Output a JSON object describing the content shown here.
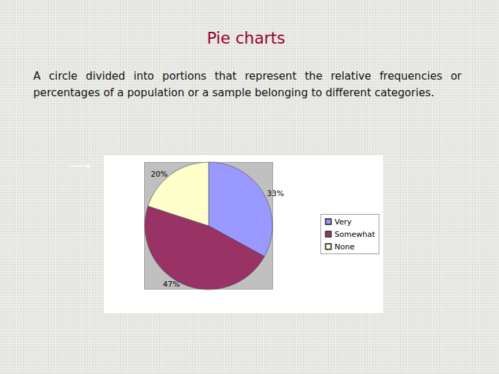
{
  "slide": {
    "title": "Pie charts",
    "text": "A circle divided into portions that represent the relative frequencies or percentages of a population or a sample belonging to different categories."
  },
  "chart_data": {
    "type": "pie",
    "categories": [
      "Very",
      "Somewhat",
      "None"
    ],
    "values": [
      33,
      47,
      20
    ],
    "value_labels": [
      "33%",
      "47%",
      "20%"
    ],
    "colors": [
      "#9999ff",
      "#993366",
      "#ffffcc"
    ],
    "data_labels": true,
    "legend": "right"
  }
}
